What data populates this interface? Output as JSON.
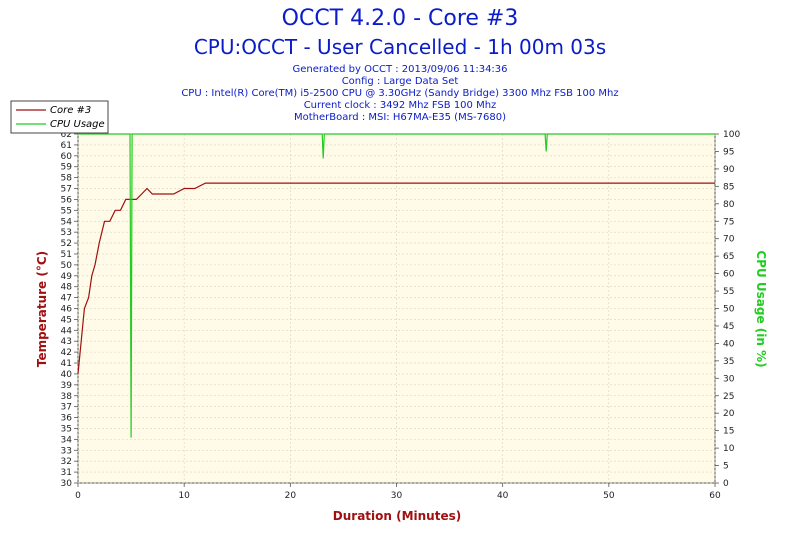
{
  "chart_data": {
    "type": "line",
    "title": "OCCT 4.2.0 - Core #3",
    "subtitle": "CPU:OCCT - User Cancelled - 1h 00m 03s",
    "info_lines": [
      "Generated by OCCT : 2013/09/06 11:34:36",
      "Config : Large Data Set",
      "CPU : Intel(R) Core(TM) i5-2500 CPU @ 3.30GHz (Sandy Bridge) 3300 Mhz FSB 100 Mhz",
      "Current clock : 3492 Mhz FSB 100 Mhz",
      "MotherBoard : MSI: H67MA-E35 (MS-7680)"
    ],
    "xlabel": "Duration (Minutes)",
    "ylabel": "Temperature (°C)",
    "y2label": "CPU Usage (in %)",
    "xlim": [
      0,
      60
    ],
    "ylim": [
      30,
      62
    ],
    "y2lim": [
      0,
      100
    ],
    "x_ticks": [
      "0",
      "10",
      "20",
      "30",
      "40",
      "50",
      "60"
    ],
    "y_ticks": [
      "30",
      "31",
      "32",
      "33",
      "34",
      "35",
      "36",
      "37",
      "38",
      "39",
      "40",
      "41",
      "42",
      "43",
      "44",
      "45",
      "46",
      "47",
      "48",
      "49",
      "50",
      "51",
      "52",
      "53",
      "54",
      "55",
      "56",
      "57",
      "58",
      "59",
      "60",
      "61",
      "62"
    ],
    "y2_ticks": [
      "0",
      "5",
      "10",
      "15",
      "20",
      "25",
      "30",
      "35",
      "40",
      "45",
      "50",
      "55",
      "60",
      "65",
      "70",
      "75",
      "80",
      "85",
      "90",
      "95",
      "100"
    ],
    "legend": [
      {
        "name": "Core #3",
        "color": "#a01010"
      },
      {
        "name": "CPU Usage",
        "color": "#22cc22"
      }
    ],
    "legend_position": "top-left",
    "grid": true,
    "series": [
      {
        "name": "Core #3",
        "axis": "left",
        "color": "#a01010",
        "points": [
          [
            0,
            40
          ],
          [
            0.3,
            43
          ],
          [
            0.6,
            46
          ],
          [
            1,
            47
          ],
          [
            1.3,
            49
          ],
          [
            1.6,
            50
          ],
          [
            2,
            52
          ],
          [
            2.5,
            54
          ],
          [
            3,
            54
          ],
          [
            3.5,
            55
          ],
          [
            4,
            55
          ],
          [
            4.5,
            56
          ],
          [
            5,
            56
          ],
          [
            5.5,
            56
          ],
          [
            6,
            56.5
          ],
          [
            6.5,
            57
          ],
          [
            7,
            56.5
          ],
          [
            8,
            56.5
          ],
          [
            9,
            56.5
          ],
          [
            10,
            57
          ],
          [
            11,
            57
          ],
          [
            12,
            57.5
          ],
          [
            15,
            57.5
          ],
          [
            20,
            57.5
          ],
          [
            25,
            57.5
          ],
          [
            30,
            57.5
          ],
          [
            35,
            57.5
          ],
          [
            40,
            57.5
          ],
          [
            45,
            57.5
          ],
          [
            50,
            57.5
          ],
          [
            55,
            57.5
          ],
          [
            60,
            57.5
          ]
        ]
      },
      {
        "name": "CPU Usage",
        "axis": "right",
        "color": "#22cc22",
        "points": [
          [
            0,
            100
          ],
          [
            4.9,
            100
          ],
          [
            5,
            13
          ],
          [
            5.1,
            100
          ],
          [
            23,
            100
          ],
          [
            23.1,
            93
          ],
          [
            23.2,
            100
          ],
          [
            44,
            100
          ],
          [
            44.1,
            95
          ],
          [
            44.2,
            100
          ],
          [
            60,
            100
          ]
        ]
      }
    ]
  }
}
